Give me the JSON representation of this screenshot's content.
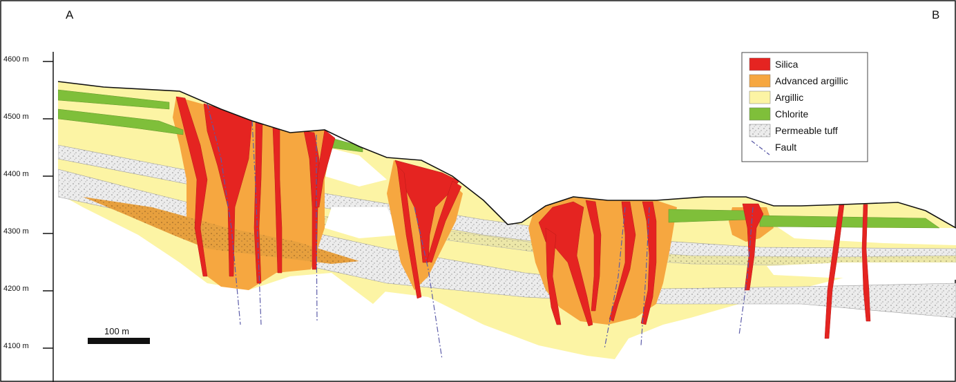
{
  "section": {
    "start_label": "A",
    "end_label": "B"
  },
  "elevation_axis": {
    "ticks": [
      "4600 m",
      "4500 m",
      "4400 m",
      "4300 m",
      "4200 m",
      "4100 m"
    ]
  },
  "legend": {
    "items": [
      {
        "label": "Silica",
        "color": "#e52421",
        "swatch": "fill"
      },
      {
        "label": "Advanced argillic",
        "color": "#f6a740",
        "swatch": "fill"
      },
      {
        "label": "Argillic",
        "color": "#fcf4a4",
        "swatch": "fill"
      },
      {
        "label": "Chlorite",
        "color": "#7fbf3a",
        "swatch": "fill"
      },
      {
        "label": "Permeable tuff",
        "color": "#e6e6e6",
        "swatch": "pattern"
      },
      {
        "label": "Fault",
        "color": "#5b5ba8",
        "swatch": "dashdot"
      }
    ]
  },
  "scale_bar": {
    "label": "100 m"
  }
}
